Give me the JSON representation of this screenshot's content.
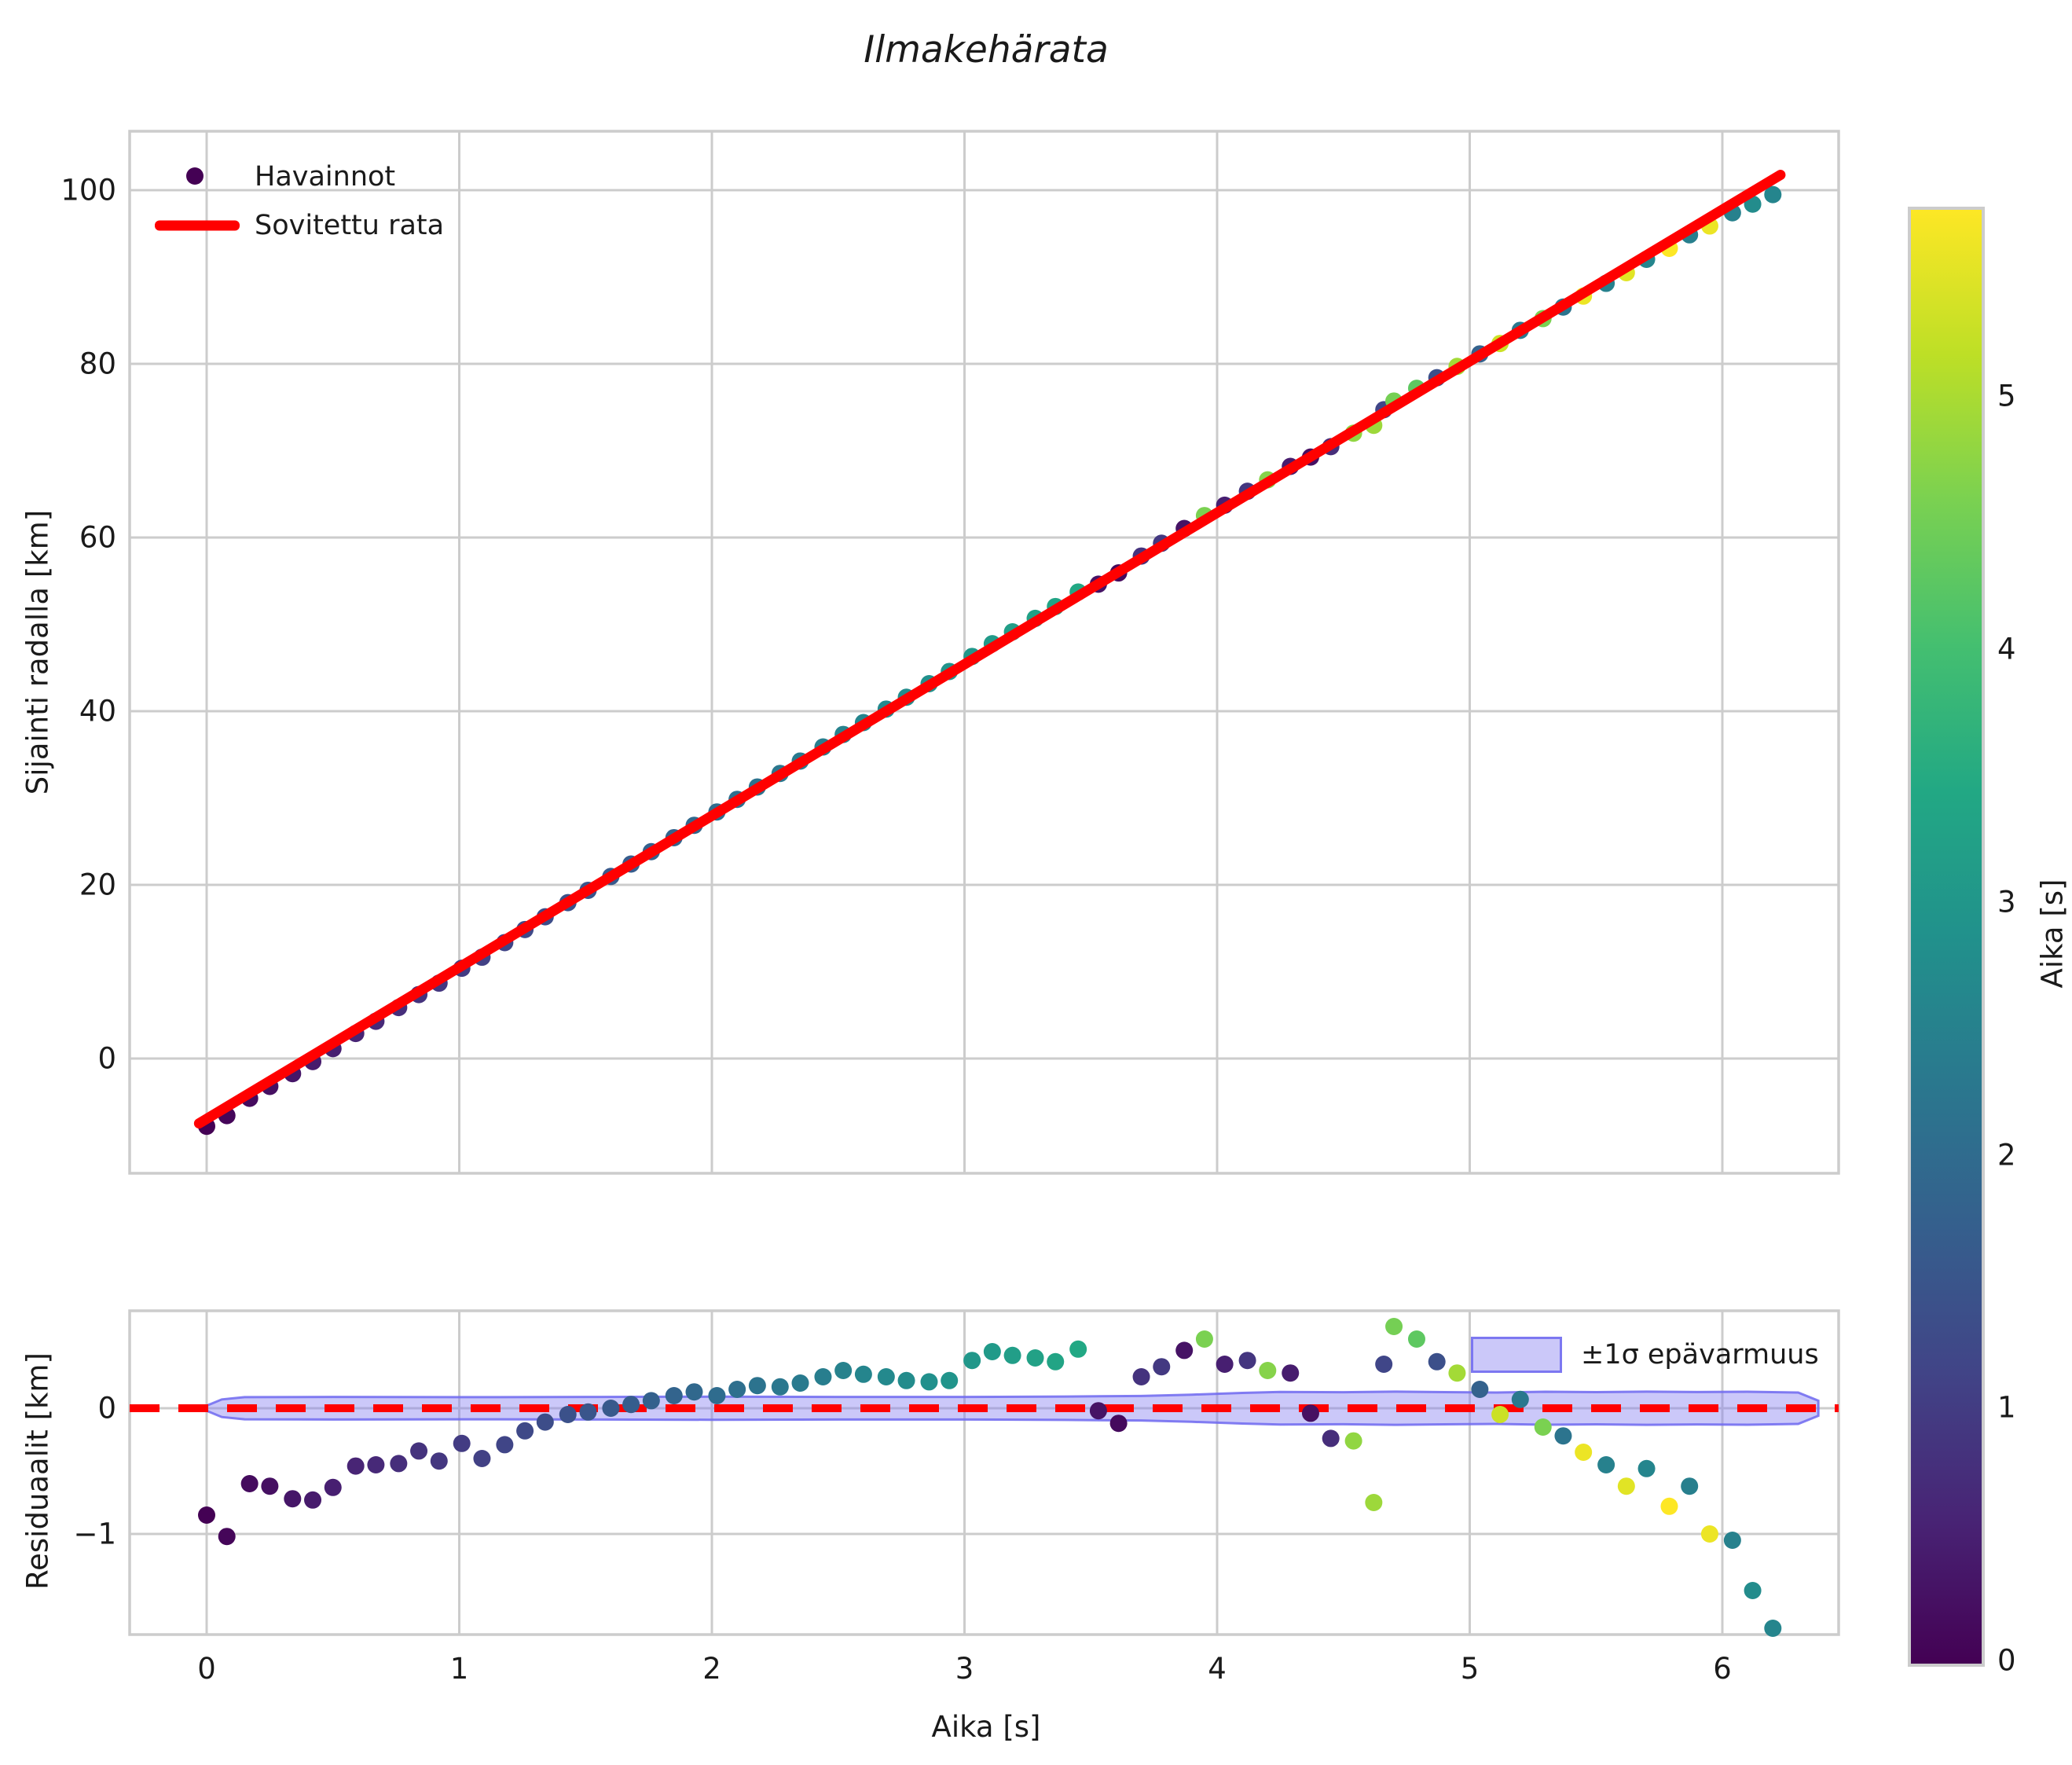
{
  "title": "Ilmakehärata",
  "xlabel": "Aika [s]",
  "main_plot": {
    "ylabel": "Sijainti radalla [km]",
    "ytick_labels": [
      "0",
      "20",
      "40",
      "60",
      "80",
      "100"
    ],
    "legend": {
      "observations_label": "Havainnot",
      "fit_label": "Sovitettu rata"
    }
  },
  "residual_plot": {
    "ylabel": "Residuaalit [km]",
    "ytick_labels": [
      "0",
      "−1"
    ],
    "legend": {
      "band_label": "±1σ epävarmuus"
    }
  },
  "xtick_labels": [
    "0",
    "1",
    "2",
    "3",
    "4",
    "5",
    "6"
  ],
  "colorbar": {
    "label": "Aika [s]",
    "tick_labels": [
      "0",
      "1",
      "2",
      "3",
      "4",
      "5"
    ],
    "vmin": 0,
    "vmax": 5.75,
    "colormap": "viridis"
  },
  "colors": {
    "fit_line": "#ff0000",
    "zero_line": "#ff0000",
    "grid": "#cccccc",
    "spine": "#cccccc",
    "band_fill": "rgba(130,125,240,0.42)",
    "band_edge": "rgba(110,105,240,0.85)",
    "text": "#1a1a1a",
    "legend_dot": "#440154"
  },
  "chart_data": {
    "type": "scatter",
    "title": "Ilmakehärata",
    "xlabel": "Aika [s]",
    "series_note": "y = fit.intercept + fit.slope * t + residual; point color = viridis(color_value / colorbar.vmax)",
    "fit": {
      "slope": 17.45,
      "intercept": -6.95,
      "t_start": -0.03,
      "t_end": 6.23,
      "legend": "Sovitettu rata"
    },
    "main_axis": {
      "ylabel": "Sijainti radalla [km]",
      "yticks": [
        0,
        20,
        40,
        60,
        80,
        100
      ],
      "ylim": [
        -13.2,
        106.8
      ],
      "xlim": [
        -0.305,
        6.46
      ],
      "xgrid": [
        0,
        1,
        2,
        3,
        4,
        5,
        6
      ]
    },
    "residual_axis": {
      "ylabel": "Residuaalit [km]",
      "yticks": [
        0,
        -1
      ],
      "ylim": [
        -1.8,
        0.775
      ],
      "zero_line": 0
    },
    "points": {
      "legend": "Havainnot",
      "t": [
        0.0,
        0.08,
        0.17,
        0.25,
        0.34,
        0.42,
        0.5,
        0.59,
        0.67,
        0.76,
        0.84,
        0.92,
        1.01,
        1.09,
        1.18,
        1.26,
        1.34,
        1.43,
        1.51,
        1.6,
        1.68,
        1.76,
        1.85,
        1.93,
        2.02,
        2.1,
        2.18,
        2.27,
        2.35,
        2.44,
        2.52,
        2.6,
        2.69,
        2.77,
        2.86,
        2.94,
        3.03,
        3.11,
        3.19,
        3.28,
        3.36,
        3.45,
        3.53,
        3.61,
        3.7,
        3.78,
        3.87,
        3.95,
        4.03,
        4.12,
        4.2,
        4.29,
        4.37,
        4.45,
        4.54,
        4.62,
        4.66,
        4.7,
        4.79,
        4.87,
        4.95,
        5.04,
        5.12,
        5.2,
        5.29,
        5.37,
        5.45,
        5.54,
        5.62,
        5.7,
        5.79,
        5.87,
        5.95,
        6.04,
        6.12,
        6.2
      ],
      "residual": [
        -0.85,
        -1.02,
        -0.6,
        -0.62,
        -0.72,
        -0.73,
        -0.63,
        -0.46,
        -0.45,
        -0.44,
        -0.34,
        -0.42,
        -0.28,
        -0.4,
        -0.29,
        -0.18,
        -0.11,
        -0.05,
        -0.03,
        0.0,
        0.03,
        0.06,
        0.1,
        0.13,
        0.1,
        0.15,
        0.18,
        0.17,
        0.2,
        0.25,
        0.3,
        0.27,
        0.25,
        0.22,
        0.21,
        0.22,
        0.38,
        0.45,
        0.42,
        0.4,
        0.37,
        0.47,
        -0.02,
        -0.12,
        0.25,
        0.33,
        0.46,
        0.55,
        0.35,
        0.38,
        0.3,
        0.28,
        -0.04,
        -0.24,
        -0.26,
        -0.75,
        0.35,
        0.65,
        0.55,
        0.37,
        0.28,
        0.15,
        -0.05,
        0.07,
        -0.15,
        -0.22,
        -0.35,
        -0.45,
        -0.62,
        -0.48,
        -0.78,
        -0.62,
        -1.0,
        -1.05,
        -1.45,
        -1.75
      ],
      "color_value": [
        0.0,
        0.08,
        0.17,
        0.25,
        0.34,
        0.42,
        0.5,
        0.59,
        0.67,
        0.76,
        0.84,
        0.92,
        1.01,
        1.09,
        1.18,
        1.26,
        1.34,
        1.43,
        1.51,
        1.6,
        1.68,
        1.76,
        1.85,
        1.93,
        2.02,
        2.1,
        2.18,
        2.27,
        2.35,
        2.44,
        2.52,
        2.6,
        2.69,
        2.77,
        2.86,
        2.94,
        3.03,
        3.11,
        3.19,
        3.28,
        3.36,
        3.45,
        0.3,
        0.15,
        0.85,
        0.95,
        0.3,
        4.6,
        0.5,
        0.9,
        4.7,
        0.45,
        0.25,
        0.75,
        4.8,
        4.9,
        1.2,
        4.55,
        4.3,
        1.4,
        4.95,
        1.8,
        5.3,
        2.3,
        4.6,
        2.2,
        5.6,
        2.5,
        5.5,
        2.6,
        5.8,
        2.45,
        5.6,
        2.5,
        2.75,
        2.6
      ]
    },
    "uncertainty_band": {
      "legend": "±1σ epävarmuus",
      "t": [
        0.0,
        0.06,
        0.15,
        0.5,
        1.0,
        1.5,
        2.0,
        2.5,
        3.0,
        3.4,
        3.7,
        3.9,
        4.1,
        4.25,
        4.5,
        4.7,
        4.9,
        5.1,
        5.3,
        5.5,
        5.7,
        5.9,
        6.1,
        6.3,
        6.38
      ],
      "halfwidth": [
        0.02,
        0.07,
        0.088,
        0.09,
        0.088,
        0.09,
        0.092,
        0.09,
        0.09,
        0.093,
        0.098,
        0.108,
        0.122,
        0.13,
        0.127,
        0.132,
        0.128,
        0.125,
        0.131,
        0.128,
        0.132,
        0.129,
        0.131,
        0.125,
        0.06
      ]
    },
    "colorbar": {
      "label": "Aika [s]",
      "vmin": 0,
      "vmax": 5.75,
      "ticks": [
        0,
        1,
        2,
        3,
        4,
        5
      ],
      "colormap": "viridis"
    }
  }
}
